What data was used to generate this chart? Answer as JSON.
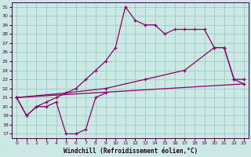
{
  "background_color": "#cce8e4",
  "grid_color": "#99cccc",
  "line_color": "#880066",
  "xlabel": "Windchill (Refroidissement éolien,°C)",
  "xlim": [
    -0.5,
    23.5
  ],
  "ylim": [
    16.5,
    31.5
  ],
  "xticks": [
    0,
    1,
    2,
    3,
    4,
    5,
    6,
    7,
    8,
    9,
    10,
    11,
    12,
    13,
    14,
    15,
    16,
    17,
    18,
    19,
    20,
    21,
    22,
    23
  ],
  "yticks": [
    17,
    18,
    19,
    20,
    21,
    22,
    23,
    24,
    25,
    26,
    27,
    28,
    29,
    30,
    31
  ],
  "lines": [
    {
      "x": [
        0,
        1,
        2,
        3,
        4,
        5,
        6,
        7,
        8,
        9
      ],
      "y": [
        21,
        19,
        20,
        20,
        20.5,
        17,
        17,
        17.5,
        21,
        21.5
      ],
      "marker": true
    },
    {
      "x": [
        0,
        1,
        2,
        3,
        4,
        5,
        6,
        7,
        8,
        9,
        10,
        11,
        12,
        13,
        14,
        15,
        16,
        17,
        18,
        19,
        20,
        21,
        22,
        23
      ],
      "y": [
        21,
        19,
        20,
        20.5,
        21,
        21.5,
        22,
        23,
        24,
        25,
        26.5,
        31,
        29.5,
        29,
        29,
        28,
        28.5,
        28.5,
        28.5,
        28.5,
        26.5,
        26.5,
        23,
        23
      ],
      "marker": true
    },
    {
      "x": [
        0,
        23
      ],
      "y": [
        21,
        22.5
      ],
      "marker": false
    },
    {
      "x": [
        0,
        5,
        9,
        13,
        17,
        20,
        21,
        22,
        23
      ],
      "y": [
        21,
        21.5,
        22,
        23,
        24,
        26.5,
        26.5,
        23,
        22.5
      ],
      "marker": true
    }
  ]
}
